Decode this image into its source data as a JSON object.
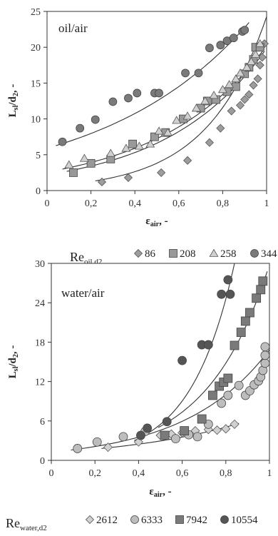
{
  "chart_data": [
    {
      "type": "scatter",
      "panel_label": "oil/air",
      "xlabel": "ε",
      "xlabel_sub": "air",
      "xlabel_suffix": ", -",
      "ylabel": "L",
      "ylabel_sub": "sl",
      "ylabel_mid": "/d",
      "ylabel_sub2": "2",
      "ylabel_suffix": ", -",
      "xlim": [
        0,
        1
      ],
      "ylim": [
        0,
        25
      ],
      "xticks": [
        "0",
        "0,2",
        "0,4",
        "0,6",
        "0,8",
        "1"
      ],
      "yticks": [
        "0",
        "5",
        "10",
        "15",
        "20",
        "25"
      ],
      "legend_title": "Re",
      "legend_title_sub": "oil,d2",
      "series": [
        {
          "name": "86",
          "marker": "diamond",
          "color": "#9c9c9c",
          "x": [
            0.25,
            0.37,
            0.52,
            0.64,
            0.74,
            0.79,
            0.84,
            0.88,
            0.9,
            0.92,
            0.94,
            0.96,
            0.97,
            0.98,
            0.99
          ],
          "y": [
            1.2,
            1.8,
            2.5,
            4.2,
            6.7,
            8.7,
            11.1,
            11.9,
            12.7,
            13.4,
            14.7,
            15.6,
            17.5,
            18.6,
            20.5
          ],
          "fit": {
            "a": 0.6,
            "b": 3.7
          }
        },
        {
          "name": "208",
          "marker": "square",
          "color": "#999999",
          "x": [
            0.12,
            0.2,
            0.29,
            0.39,
            0.49,
            0.54,
            0.62,
            0.7,
            0.73,
            0.77,
            0.82,
            0.86,
            0.9,
            0.92,
            0.94,
            0.95,
            0.97
          ],
          "y": [
            2.5,
            3.8,
            4.4,
            6.5,
            7.5,
            8.1,
            10,
            11.5,
            12.5,
            12.7,
            13.8,
            14.5,
            16.3,
            17.2,
            18.3,
            20,
            20
          ],
          "fit": {
            "a": 2.2,
            "b": 2.2
          }
        },
        {
          "name": "258",
          "marker": "triangle",
          "color": "#d0d0d0",
          "x": [
            0.1,
            0.17,
            0.29,
            0.36,
            0.42,
            0.47,
            0.51,
            0.55,
            0.59,
            0.64,
            0.68,
            0.72,
            0.76,
            0.8,
            0.83,
            0.86,
            0.88,
            0.91,
            0.93,
            0.95,
            0.97
          ],
          "y": [
            3.6,
            4.5,
            5.2,
            5.9,
            6.2,
            6.5,
            8.3,
            8.1,
            9.8,
            10.4,
            11.5,
            12.5,
            13.3,
            14.1,
            14.8,
            15.6,
            16.4,
            17.2,
            18,
            19,
            20.5
          ],
          "fit": {
            "a": 2.6,
            "b": 2.05
          }
        },
        {
          "name": "344",
          "marker": "circle",
          "color": "#7a7a7a",
          "x": [
            0.07,
            0.15,
            0.22,
            0.3,
            0.37,
            0.41,
            0.49,
            0.51,
            0.63,
            0.69,
            0.74,
            0.79,
            0.82,
            0.85,
            0.89,
            0.9
          ],
          "y": [
            6.8,
            8.7,
            9.9,
            12.4,
            12.9,
            13.6,
            13.6,
            13.6,
            16.4,
            16.4,
            19.9,
            20.3,
            20.9,
            21.3,
            22.2,
            22.4
          ],
          "fit": {
            "a": 5.9,
            "b": 1.5
          }
        }
      ]
    },
    {
      "type": "scatter",
      "panel_label": "water/air",
      "xlabel": "ε",
      "xlabel_sub": "air",
      "xlabel_suffix": ", -",
      "ylabel": "L",
      "ylabel_sub": "sl",
      "ylabel_mid": "/d",
      "ylabel_sub2": "2",
      "ylabel_suffix": ", -",
      "xlim": [
        0,
        1
      ],
      "ylim": [
        0,
        30
      ],
      "xticks": [
        "0",
        "0,2",
        "0,4",
        "0,6",
        "0,8",
        "1"
      ],
      "yticks": [
        "0",
        "6",
        "12",
        "18",
        "24",
        "30"
      ],
      "legend_title": "Re",
      "legend_title_sub": "water,d2",
      "series": [
        {
          "name": "2612",
          "marker": "diamond",
          "color": "#d0d0d0",
          "x": [
            0.26,
            0.4,
            0.5,
            0.55,
            0.6,
            0.66,
            0.72,
            0.76,
            0.8,
            0.84
          ],
          "y": [
            2,
            2.8,
            3.8,
            4,
            4.2,
            4.5,
            4.7,
            4.6,
            4.8,
            5.5
          ],
          "fit": {
            "a": 1.2,
            "b": 1.8
          }
        },
        {
          "name": "6333",
          "marker": "circle",
          "color": "#bdbdbd",
          "x": [
            0.12,
            0.21,
            0.33,
            0.43,
            0.57,
            0.63,
            0.67,
            0.72,
            0.78,
            0.81,
            0.86,
            0.89,
            0.91,
            0.93,
            0.95,
            0.96,
            0.97,
            0.98,
            0.98,
            0.98
          ],
          "y": [
            1.8,
            2.8,
            3.6,
            4.4,
            3.3,
            3.9,
            3.6,
            5.5,
            8.7,
            9.9,
            11.4,
            9.9,
            10.6,
            11.5,
            12.1,
            12.7,
            13.7,
            14.8,
            16,
            17.3
          ],
          "fit": {
            "a": 1.25,
            "b": 2.6
          }
        },
        {
          "name": "7942",
          "marker": "square",
          "color": "#7a7a7a",
          "x": [
            0.52,
            0.61,
            0.69,
            0.74,
            0.77,
            0.79,
            0.81,
            0.84,
            0.87,
            0.89,
            0.91,
            0.94,
            0.96,
            0.97
          ],
          "y": [
            3.8,
            4.5,
            6.3,
            9.9,
            11.3,
            11.9,
            12.5,
            17.5,
            19.5,
            21.2,
            22.5,
            24.7,
            26,
            27.3
          ],
          "fit": {
            "a": 0.9,
            "b": 3.5
          }
        },
        {
          "name": "10554",
          "marker": "circle",
          "color": "#555555",
          "x": [
            0.41,
            0.44,
            0.53,
            0.6,
            0.69,
            0.72,
            0.78,
            0.81,
            0.82
          ],
          "y": [
            3.8,
            4.9,
            5.9,
            15.2,
            17.6,
            17.6,
            25.3,
            27.5,
            25.3
          ],
          "fit": {
            "a": 0.45,
            "b": 5.0
          }
        }
      ]
    }
  ]
}
